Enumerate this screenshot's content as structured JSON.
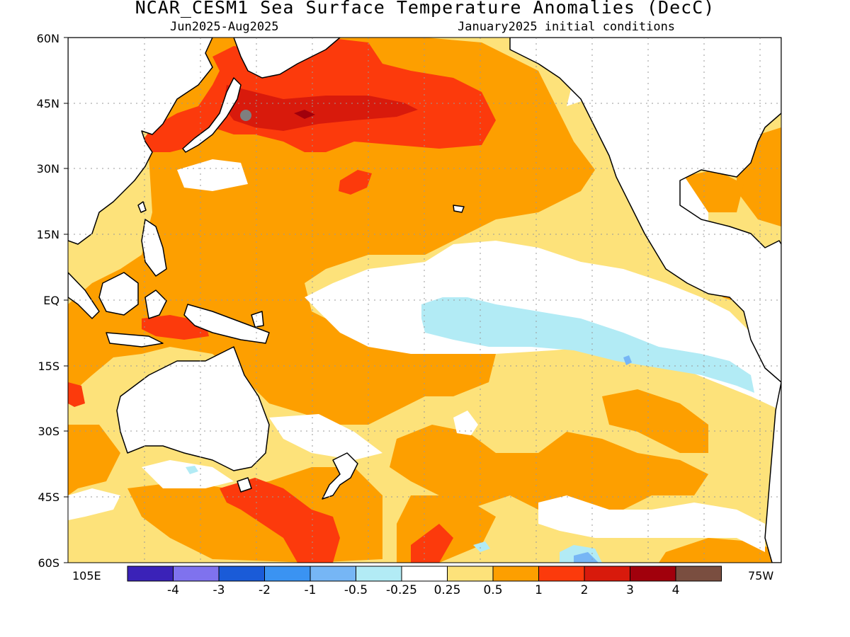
{
  "title": "NCAR_CESM1 Sea Surface Temperature Anomalies (DecC)",
  "subtitle_left": "Jun2025-Aug2025",
  "subtitle_right": "January2025 initial conditions",
  "lat_labels": [
    "60N",
    "45N",
    "30N",
    "15N",
    "EQ",
    "15S",
    "30S",
    "45S",
    "60S"
  ],
  "lon_labels": {
    "left": "105E",
    "right": "75W"
  },
  "colorbar": {
    "colors": [
      "#3a22b8",
      "#7f72ee",
      "#1a5bd8",
      "#3a93f2",
      "#76b6f5",
      "#b2ebf5",
      "#ffffff",
      "#fde27a",
      "#fd9f00",
      "#fc3a0c",
      "#d81a0c",
      "#a1000c",
      "#7a4e40"
    ],
    "labels": [
      "-4",
      "-3",
      "-2",
      "-1",
      "-0.5",
      "-0.25",
      "0.25",
      "0.5",
      "1",
      "2",
      "3",
      "4"
    ]
  },
  "legend_colors": {
    "background": "#ffffff",
    "light_yellow": "#fde27a",
    "orange": "#fd9f00",
    "red_orange": "#fc3a0c",
    "red": "#d81a0c",
    "dark_red": "#a1000c",
    "light_cyan": "#b2ebf5",
    "light_blue": "#76b6f5",
    "coast": "#000000",
    "gridline": "#999999"
  }
}
